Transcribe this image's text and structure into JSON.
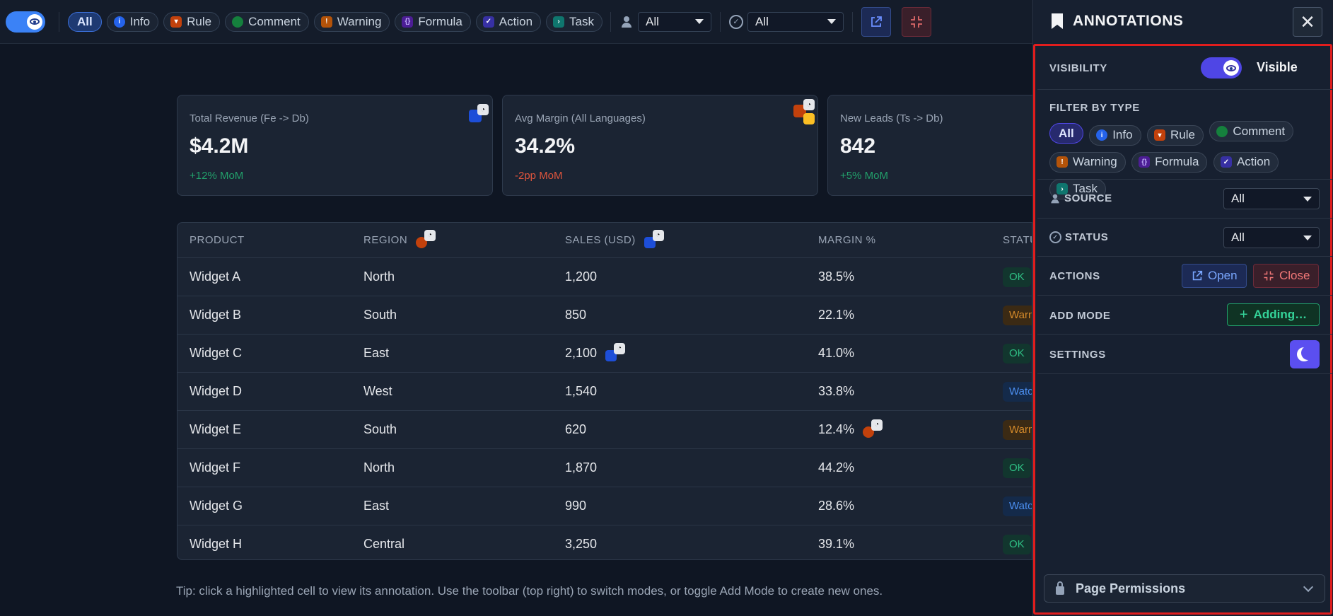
{
  "toolbar": {
    "filters": [
      {
        "label": "All",
        "icon": "",
        "active": true
      },
      {
        "label": "Info",
        "icon": "info-icon"
      },
      {
        "label": "Rule",
        "icon": "rule-icon"
      },
      {
        "label": "Comment",
        "icon": "comment-icon"
      },
      {
        "label": "Warning",
        "icon": "warning-icon"
      },
      {
        "label": "Formula",
        "icon": "formula-icon"
      },
      {
        "label": "Action",
        "icon": "action-icon"
      },
      {
        "label": "Task",
        "icon": "task-icon"
      }
    ],
    "source_value": "All",
    "status_value": "All"
  },
  "cards": [
    {
      "label": "Total Revenue (Fe -> Db)",
      "value": "$4.2M",
      "delta": "+12% MoM",
      "trend": "positive"
    },
    {
      "label": "Avg Margin (All Languages)",
      "value": "34.2%",
      "delta": "-2pp MoM",
      "trend": "negative"
    },
    {
      "label": "New Leads (Ts -> Db)",
      "value": "842",
      "delta": "+5% MoM",
      "trend": "positive"
    }
  ],
  "table": {
    "headers": [
      "PRODUCT",
      "REGION",
      "SALES (USD)",
      "MARGIN %",
      "STATUS"
    ],
    "rows": [
      {
        "product": "Widget A",
        "region": "North",
        "sales": "1,200",
        "margin": "38.5%",
        "status": "OK"
      },
      {
        "product": "Widget B",
        "region": "South",
        "sales": "850",
        "margin": "22.1%",
        "status": "Warn"
      },
      {
        "product": "Widget C",
        "region": "East",
        "sales": "2,100",
        "margin": "41.0%",
        "status": "OK"
      },
      {
        "product": "Widget D",
        "region": "West",
        "sales": "1,540",
        "margin": "33.8%",
        "status": "Watch"
      },
      {
        "product": "Widget E",
        "region": "South",
        "sales": "620",
        "margin": "12.4%",
        "status": "Warn"
      },
      {
        "product": "Widget F",
        "region": "North",
        "sales": "1,870",
        "margin": "44.2%",
        "status": "OK"
      },
      {
        "product": "Widget G",
        "region": "East",
        "sales": "990",
        "margin": "28.6%",
        "status": "Watch"
      },
      {
        "product": "Widget H",
        "region": "Central",
        "sales": "3,250",
        "margin": "39.1%",
        "status": "OK"
      }
    ]
  },
  "tip": "Tip: click a highlighted cell to view its annotation. Use the toolbar (top right) to switch modes, or toggle Add Mode to create new ones.",
  "panel": {
    "title": "ANNOTATIONS",
    "visibility_label": "VISIBILITY",
    "visibility_state": "Visible",
    "filter_label": "FILTER BY TYPE",
    "filters": [
      "All",
      "Info",
      "Rule",
      "Comment",
      "Warning",
      "Formula",
      "Action",
      "Task"
    ],
    "source_label": "SOURCE",
    "source_value": "All",
    "status_label": "STATUS",
    "status_value": "All",
    "actions_label": "ACTIONS",
    "open_label": "Open",
    "close_label": "Close",
    "add_mode_label": "ADD MODE",
    "add_mode_button": "Adding…",
    "settings_label": "SETTINGS",
    "permissions_label": "Page Permissions"
  },
  "colors": {
    "background": "#0f1623",
    "accent": "#4f46e5",
    "positive": "#22a06b",
    "negative": "#e0553d",
    "highlight_box": "#e11d1d"
  }
}
